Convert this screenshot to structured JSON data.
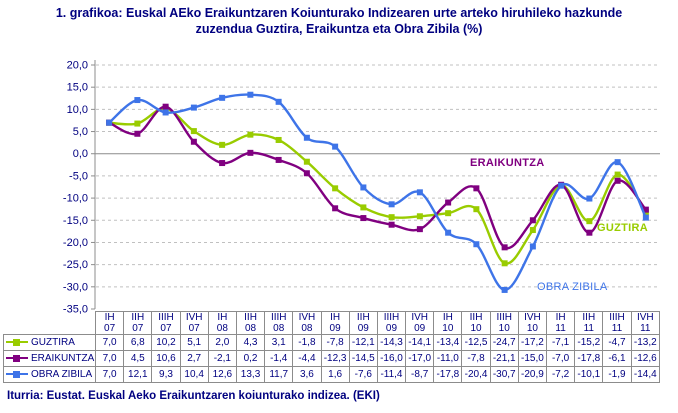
{
  "title_line1": "1. grafikoa: Euskal AEko Eraikuntzaren Koiunturako Indizearen urte arteko hiruhileko hazkunde",
  "title_line2": "zuzendua Guztira, Eraikuntza eta Obra Zibila (%)",
  "source": "Iturria: Eustat. Euskal Aeko Eraikuntzaren koiunturako indizea. (EKI)",
  "colors": {
    "text": "#000080",
    "axis": "#8C8C8C",
    "grid": "#C0C0C0",
    "guztira": "#99CC00",
    "eraikuntza": "#800080",
    "obra_zibila": "#3E74E8"
  },
  "chart_data": {
    "type": "line",
    "smooth": true,
    "title": "1. grafikoa: Euskal AEko Eraikuntzaren Koiunturako Indizearen urte arteko hiruhileko hazkunde zuzendua Guztira, Eraikuntza eta Obra Zibila (%)",
    "categories": [
      "IH 07",
      "IIH 07",
      "IIIH 07",
      "IVH 07",
      "IH 08",
      "IIH 08",
      "IIIH 08",
      "IVH 08",
      "IH 09",
      "IIH 09",
      "IIIH 09",
      "IVH 09",
      "IH 10",
      "IIH 10",
      "IIIH 10",
      "IVH 10",
      "IH 11",
      "IIH 11",
      "IIIH 11",
      "IVH 11"
    ],
    "series": [
      {
        "name": "GUZTIRA",
        "color": "#99CC00",
        "values": [
          7.0,
          6.8,
          10.2,
          5.1,
          2.0,
          4.3,
          3.1,
          -1.8,
          -7.8,
          -12.1,
          -14.3,
          -14.1,
          -13.4,
          -12.5,
          -24.7,
          -17.2,
          -7.1,
          -15.2,
          -4.7,
          -13.2
        ]
      },
      {
        "name": "ERAIKUNTZA",
        "color": "#800080",
        "values": [
          7.0,
          4.5,
          10.6,
          2.7,
          -2.1,
          0.2,
          -1.4,
          -4.4,
          -12.3,
          -14.5,
          -16.0,
          -17.0,
          -11.0,
          -7.8,
          -21.1,
          -15.0,
          -7.0,
          -17.8,
          -6.1,
          -12.6
        ]
      },
      {
        "name": "OBRA ZIBILA",
        "color": "#3E74E8",
        "values": [
          7.0,
          12.1,
          9.3,
          10.4,
          12.6,
          13.3,
          11.7,
          3.6,
          1.6,
          -7.6,
          -11.4,
          -8.7,
          -17.8,
          -20.4,
          -30.7,
          -20.9,
          -7.2,
          -10.1,
          -1.9,
          -14.4
        ]
      }
    ],
    "ylim": [
      -35,
      20
    ],
    "y_tick_step": 5,
    "grid": "horizontal-dashed",
    "legend_position": "data-table-left",
    "decimal_separator": ",",
    "annotations": [
      {
        "text": "ERAIKUNTZA",
        "series_index": 1,
        "x": 470,
        "y": 157,
        "bold": true
      },
      {
        "text": "GUZTIRA",
        "series_index": 0,
        "x": 597,
        "y": 222,
        "bold": true
      },
      {
        "text": "OBRA ZIBILA",
        "series_index": 2,
        "x": 537,
        "y": 281,
        "bold": false
      }
    ]
  }
}
